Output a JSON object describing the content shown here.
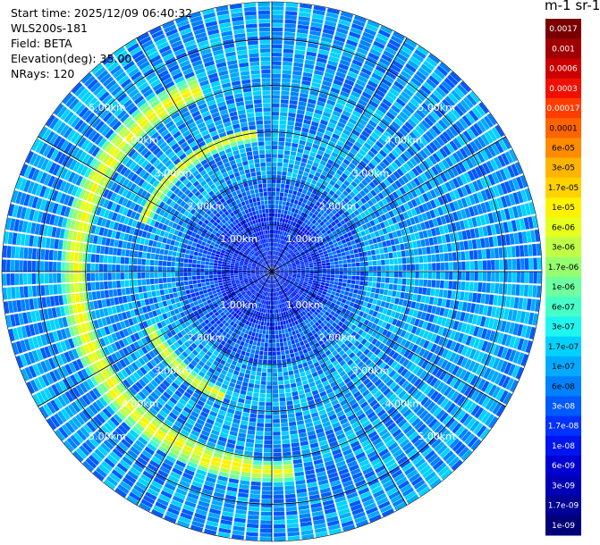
{
  "info": {
    "start_time": "Start time: 2025/12/09 06:40:32",
    "instrument": "WLS200s-181",
    "field": "Field: BETA",
    "elevation": "Elevation(deg): 35.00",
    "nrays": "NRays: 120"
  },
  "colorbar": {
    "unit": "m-1 sr-1",
    "levels": [
      "0.0017",
      "0.001",
      "0.0006",
      "0.0003",
      "0.00017",
      "0.0001",
      "6e-05",
      "3e-05",
      "1.7e-05",
      "1e-05",
      "6e-06",
      "3e-06",
      "1.7e-06",
      "1e-06",
      "6e-07",
      "3e-07",
      "1.7e-07",
      "1e-07",
      "6e-08",
      "3e-08",
      "1.7e-08",
      "1e-08",
      "6e-09",
      "3e-09",
      "1.7e-09",
      "1e-09"
    ],
    "colors": [
      "#7a0000",
      "#a00000",
      "#cc0000",
      "#f01000",
      "#ff3c00",
      "#ff6400",
      "#ff8c00",
      "#ffb400",
      "#ffd200",
      "#fff200",
      "#e6ff1e",
      "#bfff46",
      "#96ff6e",
      "#6effa0",
      "#46ffc8",
      "#1ef5f0",
      "#00d2ff",
      "#00aaff",
      "#0082ff",
      "#005aff",
      "#0032ff",
      "#0014f0",
      "#0000d2",
      "#0000b4",
      "#000096",
      "#000078"
    ]
  },
  "chart_data": {
    "type": "heatmap",
    "projection": "polar PPI",
    "range_rings_km": [
      1,
      2,
      3,
      4,
      5
    ],
    "range_ring_labels": [
      "1.00km",
      "2.00km",
      "3.00km",
      "4.00km",
      "5.00km"
    ],
    "max_range_km": 5.8,
    "n_rays": 120,
    "field": "BETA",
    "background_beta": "1e-07 to 6e-08",
    "features": [
      {
        "description": "aerosol/cloud arc",
        "range_km": [
          3.95,
          4.5
        ],
        "azimuth_deg": [
          185,
          340
        ],
        "beta": "1.7e-06 to 1e-05"
      },
      {
        "description": "arc segment",
        "range_km": [
          2.85,
          3.1
        ],
        "azimuth_deg": [
          290,
          355
        ],
        "beta": "3e-06 to 1e-05"
      },
      {
        "description": "arc segment",
        "range_km": [
          2.75,
          3.0
        ],
        "azimuth_deg": [
          200,
          245
        ],
        "beta": "3e-06 to 1e-05"
      },
      {
        "description": "patch",
        "range_km": [
          4.1,
          4.5
        ],
        "azimuth_deg": [
          175,
          200
        ],
        "beta": "1.7e-06 to 1e-06"
      }
    ]
  }
}
